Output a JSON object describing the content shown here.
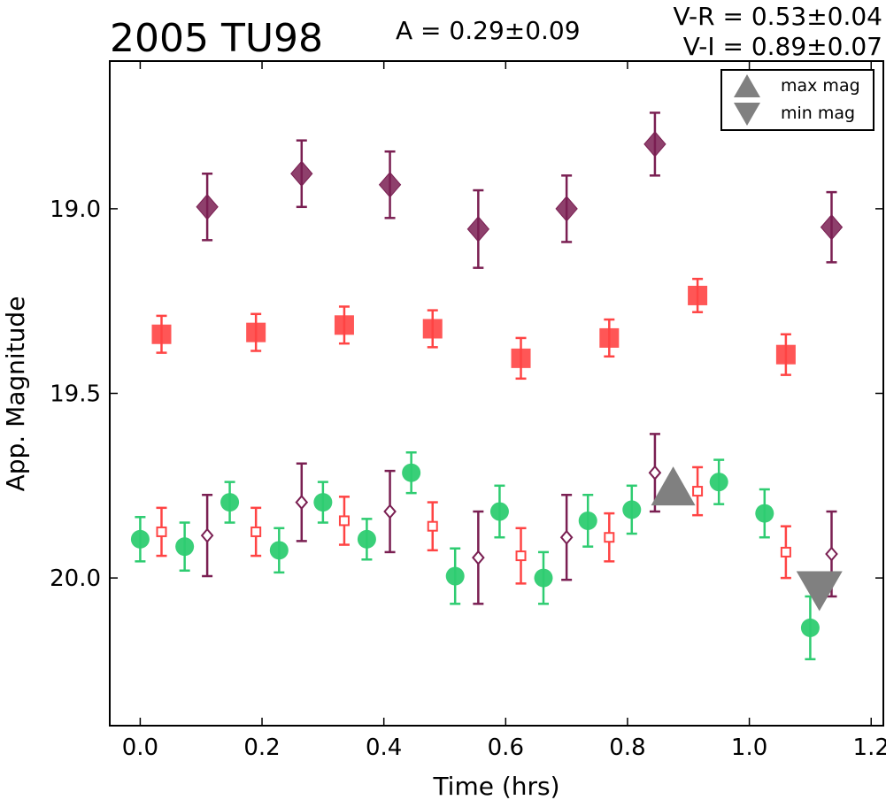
{
  "chart_data": {
    "type": "scatter",
    "title": "2005 TU98",
    "xlabel": "Time (hrs)",
    "ylabel": "App. Magnitude",
    "xlim": [
      -0.05,
      1.22
    ],
    "ylim": [
      20.4,
      18.6
    ],
    "y_inverted": true,
    "xticks": [
      "0.0",
      "0.2",
      "0.4",
      "0.6",
      "0.8",
      "1.0",
      "1.2"
    ],
    "yticks": [
      "19.0",
      "19.5",
      "20.0"
    ],
    "annotations": {
      "amplitude": "A  = 0.29±0.09",
      "v_r": "V-R = 0.53±0.04",
      "v_i": "V-I  = 0.89±0.07"
    },
    "legend": {
      "position": "top-right",
      "entries": [
        {
          "label": "max mag",
          "marker": "triangle-up",
          "color": "#808080"
        },
        {
          "label": "min mag",
          "marker": "triangle-down",
          "color": "#808080"
        }
      ]
    },
    "colors": {
      "green": "#2ecc71",
      "red": "#ff4444",
      "purple": "#7a1f52"
    },
    "series": [
      {
        "marker": "diamond-filled",
        "color": "#7a1f52",
        "x": [
          0.11,
          0.265,
          0.41,
          0.555,
          0.7,
          0.845,
          1.135
        ],
        "y": [
          18.995,
          18.905,
          18.935,
          19.055,
          19.0,
          18.825,
          19.05
        ],
        "err": [
          0.09,
          0.09,
          0.09,
          0.105,
          0.09,
          0.085,
          0.095
        ]
      },
      {
        "marker": "square-filled",
        "color": "#ff4444",
        "x": [
          0.035,
          0.19,
          0.335,
          0.48,
          0.625,
          0.77,
          0.915,
          1.06
        ],
        "y": [
          19.34,
          19.335,
          19.315,
          19.325,
          19.405,
          19.35,
          19.235,
          19.395
        ],
        "err": [
          0.05,
          0.05,
          0.05,
          0.05,
          0.055,
          0.05,
          0.045,
          0.055
        ]
      },
      {
        "marker": "circle-filled",
        "color": "#2ecc71",
        "x": [
          0.0,
          0.073,
          0.147,
          0.228,
          0.3,
          0.372,
          0.445,
          0.517,
          0.59,
          0.662,
          0.735,
          0.807,
          0.95,
          1.025,
          1.1
        ],
        "y": [
          19.895,
          19.915,
          19.795,
          19.925,
          19.795,
          19.895,
          19.715,
          19.995,
          19.82,
          20.0,
          19.845,
          19.815,
          19.74,
          19.825,
          20.135
        ],
        "err": [
          0.06,
          0.065,
          0.055,
          0.06,
          0.055,
          0.055,
          0.055,
          0.075,
          0.07,
          0.07,
          0.07,
          0.065,
          0.06,
          0.065,
          0.085
        ]
      },
      {
        "marker": "square-open",
        "color": "#ff4444",
        "x": [
          0.035,
          0.19,
          0.335,
          0.48,
          0.625,
          0.77,
          0.915,
          1.06
        ],
        "y": [
          19.875,
          19.875,
          19.845,
          19.86,
          19.94,
          19.89,
          19.765,
          19.93
        ],
        "err": [
          0.065,
          0.065,
          0.065,
          0.065,
          0.075,
          0.065,
          0.065,
          0.07
        ]
      },
      {
        "marker": "diamond-open",
        "color": "#7a1f52",
        "x": [
          0.11,
          0.265,
          0.41,
          0.555,
          0.7,
          0.845,
          1.135
        ],
        "y": [
          19.885,
          19.795,
          19.82,
          19.945,
          19.89,
          19.715,
          19.935
        ],
        "err": [
          0.11,
          0.105,
          0.11,
          0.125,
          0.115,
          0.105,
          0.115
        ]
      },
      {
        "marker": "triangle-up",
        "color": "#808080",
        "x": [
          0.875
        ],
        "y": [
          19.765
        ],
        "err": [
          0
        ]
      },
      {
        "marker": "triangle-down",
        "color": "#808080",
        "x": [
          1.115
        ],
        "y": [
          20.025
        ],
        "err": [
          0
        ]
      }
    ]
  }
}
